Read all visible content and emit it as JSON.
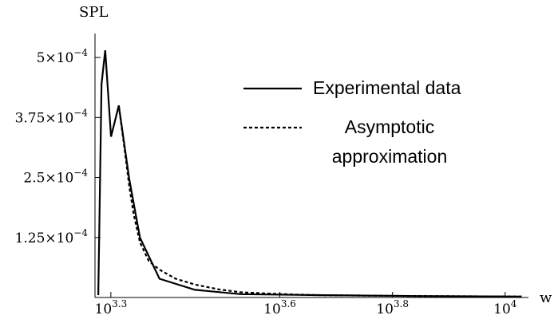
{
  "chart_data": {
    "type": "line",
    "title": "",
    "xlabel": "w",
    "ylabel": "SPL",
    "x_scale": "log10",
    "xlim": [
      1870,
      11000
    ],
    "ylim": [
      0,
      0.00055
    ],
    "grid": false,
    "legend_position": "top-right",
    "x_ticks": [
      {
        "base": "10",
        "exp": "3.3",
        "value": 1995.26
      },
      {
        "base": "10",
        "exp": "3.6",
        "value": 3981.07
      },
      {
        "base": "10",
        "exp": "3.8",
        "value": 6309.57
      },
      {
        "base": "10",
        "exp": "4",
        "value": 10000
      }
    ],
    "y_ticks": [
      {
        "mant": "5",
        "exp": "−4",
        "value": 0.0005
      },
      {
        "mant": "3.75",
        "exp": "−4",
        "value": 0.000375
      },
      {
        "mant": "2.5",
        "exp": "−4",
        "value": 0.00025
      },
      {
        "mant": "1.25",
        "exp": "−4",
        "value": 0.000125
      }
    ],
    "series": [
      {
        "name": "Experimental data",
        "style": "solid",
        "color": "#000000",
        "points": [
          [
            1895,
            5e-06
          ],
          [
            1921,
            0.000445
          ],
          [
            1950,
            0.000515
          ],
          [
            1997,
            0.000335
          ],
          [
            2061,
            0.0004
          ],
          [
            2151,
            0.000247
          ],
          [
            2247,
            0.000125
          ],
          [
            2434,
            3.9e-05
          ],
          [
            2815,
            1.6e-05
          ],
          [
            3389,
            7e-06
          ],
          [
            4604,
            5e-06
          ],
          [
            6962,
            3e-06
          ],
          [
            10700,
            2e-06
          ]
        ]
      },
      {
        "name": "Asymptotic approximation",
        "style": "dashed",
        "color": "#000000",
        "points": [
          [
            2061,
            0.0004
          ],
          [
            2080,
            0.000365
          ],
          [
            2110,
            0.00031
          ],
          [
            2151,
            0.000232
          ],
          [
            2190,
            0.000174
          ],
          [
            2247,
            0.000115
          ],
          [
            2330,
            7.6e-05
          ],
          [
            2434,
            5.8e-05
          ],
          [
            2600,
            3.9e-05
          ],
          [
            2815,
            2.7e-05
          ],
          [
            3100,
            1.7e-05
          ],
          [
            3389,
            1.1e-05
          ],
          [
            4000,
            7e-06
          ],
          [
            4604,
            5e-06
          ],
          [
            6962,
            3e-06
          ],
          [
            10700,
            2e-06
          ]
        ]
      }
    ]
  }
}
